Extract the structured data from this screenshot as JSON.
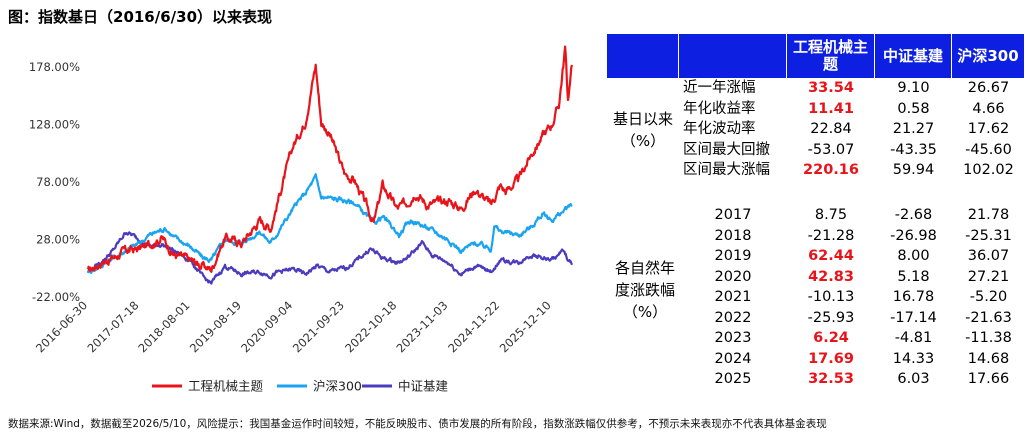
{
  "title": "图：指数基日（2016/6/30）以来表现",
  "footer": "数据来源:Wind，数据截至2026/5/10，风险提示：我国基金运作时间较短，不能反映股市、债市发展的所有阶段，指数涨跌幅仅供参考，不预示未来表现亦不代表具体基金表现",
  "chart_data": {
    "type": "line",
    "y_ticks": [
      "178.00%",
      "128.00%",
      "78.00%",
      "28.00%",
      "-22.00%"
    ],
    "y_tick_values": [
      178,
      128,
      78,
      28,
      -22
    ],
    "ylim": [
      -22,
      193
    ],
    "x_ticks": [
      "2016-06-30",
      "2017-07-18",
      "2018-08-01",
      "2019-08-19",
      "2020-09-04",
      "2021-09-23",
      "2022-10-18",
      "2023-11-03",
      "2024-11-22",
      "2025-12-10"
    ],
    "x_end_label": "2026-05-10",
    "series": [
      {
        "name": "工程机械主题",
        "color": "#e8141a",
        "x": [
          "2016-06-30",
          "2016-10-01",
          "2017-01-01",
          "2017-04-01",
          "2017-07-18",
          "2017-10-01",
          "2018-01-01",
          "2018-04-01",
          "2018-08-01",
          "2018-11-01",
          "2019-01-04",
          "2019-04-15",
          "2019-08-19",
          "2019-12-31",
          "2020-03-20",
          "2020-06-01",
          "2020-09-04",
          "2020-12-01",
          "2021-02-18",
          "2021-04-01",
          "2021-06-01",
          "2021-09-23",
          "2021-12-01",
          "2022-03-01",
          "2022-04-26",
          "2022-07-01",
          "2022-10-18",
          "2022-12-30",
          "2023-03-01",
          "2023-06-01",
          "2023-11-03",
          "2024-02-05",
          "2024-05-20",
          "2024-09-13",
          "2024-11-22",
          "2025-01-01",
          "2025-04-08",
          "2025-07-01",
          "2025-10-01",
          "2025-12-10",
          "2026-02-01",
          "2026-03-20",
          "2026-04-10",
          "2026-05-10"
        ],
        "values": [
          0,
          8,
          12,
          18,
          20,
          24,
          30,
          15,
          10,
          5,
          2,
          30,
          25,
          45,
          38,
          70,
          110,
          130,
          180,
          130,
          120,
          85,
          80,
          58,
          42,
          75,
          55,
          60,
          70,
          58,
          62,
          55,
          72,
          58,
          75,
          70,
          80,
          100,
          118,
          128,
          145,
          195,
          150,
          180
        ]
      },
      {
        "name": "沪深300",
        "color": "#1aa3f0",
        "x": [
          "2016-06-30",
          "2016-10-01",
          "2017-01-01",
          "2017-04-01",
          "2017-07-18",
          "2017-10-01",
          "2018-01-26",
          "2018-04-01",
          "2018-08-01",
          "2018-11-01",
          "2019-01-04",
          "2019-04-15",
          "2019-08-19",
          "2019-12-31",
          "2020-03-20",
          "2020-06-01",
          "2020-09-04",
          "2020-12-01",
          "2021-02-18",
          "2021-04-01",
          "2021-09-23",
          "2021-12-01",
          "2022-04-26",
          "2022-07-01",
          "2022-10-31",
          "2023-01-30",
          "2023-06-01",
          "2023-11-03",
          "2024-02-05",
          "2024-05-20",
          "2024-09-13",
          "2024-10-08",
          "2024-11-22",
          "2025-04-08",
          "2025-07-01",
          "2025-10-01",
          "2025-12-10",
          "2026-03-01",
          "2026-05-10"
        ],
        "values": [
          0,
          5,
          12,
          18,
          25,
          32,
          38,
          30,
          22,
          12,
          10,
          28,
          25,
          35,
          25,
          38,
          55,
          68,
          82,
          65,
          62,
          60,
          42,
          48,
          32,
          45,
          38,
          28,
          18,
          25,
          20,
          40,
          35,
          32,
          38,
          50,
          45,
          52,
          58
        ]
      },
      {
        "name": "中证基建",
        "color": "#4b3bbd",
        "x": [
          "2016-06-30",
          "2016-10-01",
          "2017-01-01",
          "2017-04-10",
          "2017-07-18",
          "2017-10-01",
          "2018-01-01",
          "2018-04-01",
          "2018-08-01",
          "2018-11-01",
          "2019-01-04",
          "2019-04-15",
          "2019-08-19",
          "2019-12-31",
          "2020-03-20",
          "2020-06-01",
          "2020-09-04",
          "2020-12-01",
          "2021-03-01",
          "2021-06-01",
          "2021-09-23",
          "2021-12-01",
          "2022-04-01",
          "2022-07-01",
          "2022-10-18",
          "2023-01-01",
          "2023-04-20",
          "2023-07-01",
          "2023-11-03",
          "2024-02-05",
          "2024-05-20",
          "2024-09-13",
          "2024-11-22",
          "2025-04-08",
          "2025-07-01",
          "2025-12-10",
          "2026-03-01",
          "2026-05-10"
        ],
        "values": [
          0,
          8,
          18,
          35,
          28,
          22,
          24,
          18,
          10,
          -5,
          -10,
          5,
          -2,
          0,
          -3,
          0,
          2,
          -2,
          5,
          0,
          3,
          8,
          20,
          12,
          8,
          12,
          25,
          15,
          8,
          -2,
          5,
          0,
          10,
          8,
          15,
          10,
          18,
          6
        ]
      }
    ],
    "legend_position": "bottom"
  },
  "table": {
    "headers": [
      "",
      "",
      "工程机械主题",
      "中证基建",
      "沪深300"
    ],
    "group1_label": "基日以来（%）",
    "group1_rows": [
      {
        "label": "近一年涨幅",
        "v1": "33.54",
        "v2": "9.10",
        "v3": "26.67",
        "hl": true
      },
      {
        "label": "年化收益率",
        "v1": "11.41",
        "v2": "0.58",
        "v3": "4.66",
        "hl": true
      },
      {
        "label": "年化波动率",
        "v1": "22.84",
        "v2": "21.27",
        "v3": "17.62",
        "hl": false
      },
      {
        "label": "区间最大回撤",
        "v1": "-53.07",
        "v2": "-43.35",
        "v3": "-45.60",
        "hl": false
      },
      {
        "label": "区间最大涨幅",
        "v1": "220.16",
        "v2": "59.94",
        "v3": "102.02",
        "hl": true
      }
    ],
    "group2_label": "各自然年度涨跌幅（%）",
    "group2_rows": [
      {
        "label": "2017",
        "v1": "8.75",
        "v2": "-2.68",
        "v3": "21.78",
        "hl": false
      },
      {
        "label": "2018",
        "v1": "-21.28",
        "v2": "-26.98",
        "v3": "-25.31",
        "hl": false
      },
      {
        "label": "2019",
        "v1": "62.44",
        "v2": "8.00",
        "v3": "36.07",
        "hl": true
      },
      {
        "label": "2020",
        "v1": "42.83",
        "v2": "5.18",
        "v3": "27.21",
        "hl": true
      },
      {
        "label": "2021",
        "v1": "-10.13",
        "v2": "16.78",
        "v3": "-5.20",
        "hl": false
      },
      {
        "label": "2022",
        "v1": "-25.93",
        "v2": "-17.14",
        "v3": "-21.63",
        "hl": false
      },
      {
        "label": "2023",
        "v1": "6.24",
        "v2": "-4.81",
        "v3": "-11.38",
        "hl": true
      },
      {
        "label": "2024",
        "v1": "17.69",
        "v2": "14.33",
        "v3": "14.68",
        "hl": true
      },
      {
        "label": "2025",
        "v1": "32.53",
        "v2": "6.03",
        "v3": "17.66",
        "hl": true
      }
    ]
  }
}
